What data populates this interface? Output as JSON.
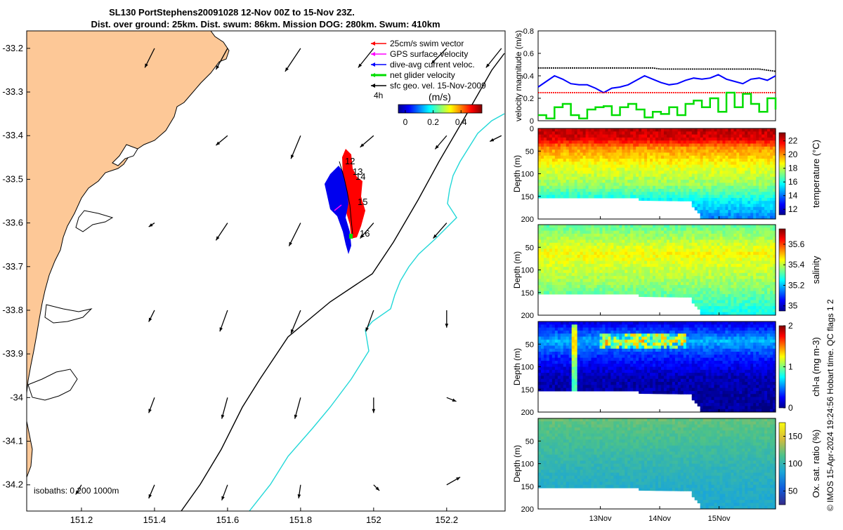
{
  "title_line1": "SL130 PortStephens20091028 12-Nov 00Z to 15-Nov 23Z.",
  "title_line2": "Dist. over ground: 25km. Dist. swum: 86km. Mission DOG: 280km. Swum: 410km",
  "side_note": "© IMOS 15-Apr-2024 19:24:56 Hobart time. QC flags 1  2",
  "chart_data": [
    {
      "type": "map",
      "x_ticks": [
        "151.2",
        "151.4",
        "151.6",
        "151.8",
        "152",
        "152.2"
      ],
      "y_ticks": [
        "-33.2",
        "-33.3",
        "-33.4",
        "-33.5",
        "-33.6",
        "-33.7",
        "-33.8",
        "-33.9",
        "-34",
        "-34.1",
        "-34.2"
      ],
      "xlim": [
        151.05,
        152.36
      ],
      "ylim": [
        -34.26,
        -33.16
      ],
      "legend": [
        {
          "label": "25cm/s swim vector",
          "color": "#ff0000"
        },
        {
          "label": "GPS surface velocity",
          "color": "#ff00ff"
        },
        {
          "label": "dive-avg current veloc.",
          "color": "#0000ff"
        },
        {
          "label": "net glider velocity",
          "color": "#00dd00"
        },
        {
          "label": "sfc geo. vel. 15-Nov-2009",
          "color": "#000000"
        }
      ],
      "colorbar_title": "(m/s)",
      "colorbar_ticks": [
        "0",
        "0.2",
        "0.4"
      ],
      "time_marker": "4h",
      "isobaths_label": "isobaths: 0   200  1000m",
      "day_labels": [
        "12",
        "13",
        "14",
        "15",
        "16"
      ],
      "track_points": [
        {
          "lon": 151.91,
          "lat": -33.46
        },
        {
          "lon": 151.93,
          "lat": -33.52
        },
        {
          "lon": 151.94,
          "lat": -33.59
        },
        {
          "lon": 151.93,
          "lat": -33.67
        }
      ],
      "vector_grid": [
        {
          "lon": 151.2,
          "lat": -33.2,
          "u": 0,
          "v": 0,
          "dir": "sw"
        },
        {
          "lon": 151.4,
          "lat": -33.2,
          "u": -0.25,
          "v": -0.5
        },
        {
          "lon": 151.6,
          "lat": -33.2,
          "u": -0.3,
          "v": -0.55
        },
        {
          "lon": 151.8,
          "lat": -33.2,
          "u": -0.4,
          "v": -0.6
        },
        {
          "lon": 152.0,
          "lat": -33.2,
          "u": -0.4,
          "v": -0.5
        },
        {
          "lon": 152.2,
          "lat": -33.2,
          "u": -0.4,
          "v": -0.4
        },
        {
          "lon": 152.35,
          "lat": -33.2,
          "u": -0.4,
          "v": -0.5
        },
        {
          "lon": 151.6,
          "lat": -33.4,
          "u": -0.3,
          "v": -0.25
        },
        {
          "lon": 151.8,
          "lat": -33.4,
          "u": -0.25,
          "v": -0.6
        },
        {
          "lon": 152.0,
          "lat": -33.4,
          "u": -0.35,
          "v": -0.3
        },
        {
          "lon": 152.2,
          "lat": -33.4,
          "u": -0.3,
          "v": -0.35
        },
        {
          "lon": 152.35,
          "lat": -33.4,
          "u": -0.3,
          "v": -0.15
        },
        {
          "lon": 151.4,
          "lat": -33.6,
          "u": -0.15,
          "v": -0.1
        },
        {
          "lon": 151.6,
          "lat": -33.6,
          "u": -0.3,
          "v": -0.45
        },
        {
          "lon": 151.8,
          "lat": -33.6,
          "u": -0.3,
          "v": -0.6
        },
        {
          "lon": 152.0,
          "lat": -33.6,
          "u": -0.35,
          "v": -0.4
        },
        {
          "lon": 152.2,
          "lat": -33.6,
          "u": -0.35,
          "v": -0.4
        },
        {
          "lon": 151.4,
          "lat": -33.8,
          "u": -0.15,
          "v": -0.3
        },
        {
          "lon": 151.6,
          "lat": -33.8,
          "u": -0.2,
          "v": -0.55
        },
        {
          "lon": 151.8,
          "lat": -33.8,
          "u": -0.25,
          "v": -0.6
        },
        {
          "lon": 152.0,
          "lat": -33.8,
          "u": -0.2,
          "v": -0.55
        },
        {
          "lon": 152.2,
          "lat": -33.8,
          "u": 0.0,
          "v": -0.45
        },
        {
          "lon": 151.4,
          "lat": -34.0,
          "u": -0.15,
          "v": -0.4
        },
        {
          "lon": 151.6,
          "lat": -34.0,
          "u": -0.15,
          "v": -0.55
        },
        {
          "lon": 151.8,
          "lat": -34.0,
          "u": -0.15,
          "v": -0.55
        },
        {
          "lon": 152.0,
          "lat": -34.0,
          "u": 0.0,
          "v": -0.4
        },
        {
          "lon": 152.2,
          "lat": -34.0,
          "u": 0.25,
          "v": -0.1
        },
        {
          "lon": 151.2,
          "lat": -34.2,
          "u": -0.15,
          "v": -0.25
        },
        {
          "lon": 151.4,
          "lat": -34.2,
          "u": -0.15,
          "v": -0.35
        },
        {
          "lon": 151.6,
          "lat": -34.2,
          "u": -0.15,
          "v": -0.4
        },
        {
          "lon": 151.8,
          "lat": -34.2,
          "u": -0.05,
          "v": -0.35
        },
        {
          "lon": 152.0,
          "lat": -34.2,
          "u": 0.15,
          "v": -0.15
        },
        {
          "lon": 152.2,
          "lat": -34.2,
          "u": 0.35,
          "v": 0.2
        }
      ]
    },
    {
      "type": "line",
      "ylabel": "velocity magnitude (m/s)",
      "ylim": [
        0,
        0.8
      ],
      "y_ticks": [
        "0",
        "0.2",
        "0.4",
        "0.6",
        "0.8"
      ],
      "series": [
        {
          "color": "#000000",
          "values": [
            0.47,
            0.47,
            0.47,
            0.47,
            0.47,
            0.47,
            0.47,
            0.47,
            0.47,
            0.47,
            0.47,
            0.47,
            0.47,
            0.47,
            0.47,
            0.46,
            0.46,
            0.46,
            0.46,
            0.46,
            0.46,
            0.46,
            0.46,
            0.46,
            0.46,
            0.46,
            0.46,
            0.46,
            0.45,
            0.44
          ]
        },
        {
          "color": "#0000ff",
          "values": [
            0.3,
            0.35,
            0.4,
            0.37,
            0.33,
            0.32,
            0.32,
            0.29,
            0.25,
            0.29,
            0.3,
            0.32,
            0.36,
            0.4,
            0.37,
            0.34,
            0.32,
            0.33,
            0.36,
            0.38,
            0.37,
            0.38,
            0.41,
            0.37,
            0.35,
            0.33,
            0.37,
            0.38,
            0.36,
            0.4
          ]
        },
        {
          "color": "#ff0000",
          "values": [
            0.25,
            0.25,
            0.25,
            0.25,
            0.25,
            0.25,
            0.25,
            0.25,
            0.25,
            0.25,
            0.25,
            0.25,
            0.25,
            0.25,
            0.25,
            0.25,
            0.25,
            0.25,
            0.25,
            0.25,
            0.25,
            0.25,
            0.25,
            0.25,
            0.25,
            0.25,
            0.25,
            0.25,
            0.25,
            0.25
          ]
        },
        {
          "color": "#00dd00",
          "values": [
            0.05,
            0.02,
            0.12,
            0.15,
            0.05,
            0.02,
            0.1,
            0.12,
            0.13,
            0.05,
            0.12,
            0.15,
            0.1,
            0.03,
            0.08,
            0.06,
            0.12,
            0.05,
            0.15,
            0.18,
            0.12,
            0.2,
            0.08,
            0.25,
            0.12,
            0.24,
            0.15,
            0.08,
            0.2,
            0.1
          ]
        }
      ]
    },
    {
      "type": "heatmap",
      "ylabel": "Depth (m)",
      "clabel": "temperature (°C)",
      "ylim": [
        0,
        200
      ],
      "y_ticks": [
        "0",
        "50",
        "100",
        "150",
        "200"
      ],
      "c_ticks": [
        "12",
        "14",
        "16",
        "18",
        "20",
        "22"
      ],
      "crange": [
        11.2,
        23.2
      ],
      "x_ticks": [
        "13Nov",
        "14Nov",
        "15Nov"
      ],
      "profile": [
        {
          "depth": 0,
          "value": 22.5
        },
        {
          "depth": 20,
          "value": 22.0
        },
        {
          "depth": 40,
          "value": 20.0
        },
        {
          "depth": 80,
          "value": 18.5
        },
        {
          "depth": 120,
          "value": 17.5
        },
        {
          "depth": 160,
          "value": 15.5
        },
        {
          "depth": 200,
          "value": 14.0
        }
      ]
    },
    {
      "type": "heatmap",
      "ylabel": "Depth (m)",
      "clabel": "salinity",
      "ylim": [
        0,
        200
      ],
      "y_ticks": [
        "50",
        "100",
        "150",
        "200"
      ],
      "c_ticks": [
        "35",
        "35.2",
        "35.4",
        "35.6"
      ],
      "crange": [
        34.95,
        35.75
      ],
      "x_ticks": [
        "13Nov",
        "14Nov",
        "15Nov"
      ],
      "profile": [
        {
          "depth": 0,
          "value": 35.33
        },
        {
          "depth": 60,
          "value": 35.45
        },
        {
          "depth": 120,
          "value": 35.38
        },
        {
          "depth": 200,
          "value": 35.25
        }
      ]
    },
    {
      "type": "heatmap",
      "ylabel": "Depth (m)",
      "clabel": "chl-a (mg m-3)",
      "ylim": [
        0,
        200
      ],
      "y_ticks": [
        "50",
        "100",
        "150",
        "200"
      ],
      "c_ticks": [
        "0",
        "1",
        "2"
      ],
      "crange": [
        0,
        2
      ],
      "x_ticks": [
        "13Nov",
        "14Nov",
        "15Nov"
      ],
      "profile": [
        {
          "depth": 0,
          "value": 0.2
        },
        {
          "depth": 40,
          "value": 0.6
        },
        {
          "depth": 70,
          "value": 0.35
        },
        {
          "depth": 120,
          "value": 0.1
        },
        {
          "depth": 200,
          "value": 0.05
        }
      ]
    },
    {
      "type": "heatmap",
      "ylabel": "Depth (m)",
      "clabel": "Ox. sat. ratio (%)",
      "ylim": [
        0,
        200
      ],
      "y_ticks": [
        "50",
        "100",
        "150",
        "200"
      ],
      "c_ticks": [
        "50",
        "100",
        "150"
      ],
      "crange": [
        25,
        175
      ],
      "x_ticks": [
        "13Nov",
        "14Nov",
        "15Nov"
      ],
      "profile": [
        {
          "depth": 0,
          "value": 120
        },
        {
          "depth": 50,
          "value": 110
        },
        {
          "depth": 100,
          "value": 100
        },
        {
          "depth": 150,
          "value": 92
        },
        {
          "depth": 200,
          "value": 88
        }
      ]
    }
  ]
}
